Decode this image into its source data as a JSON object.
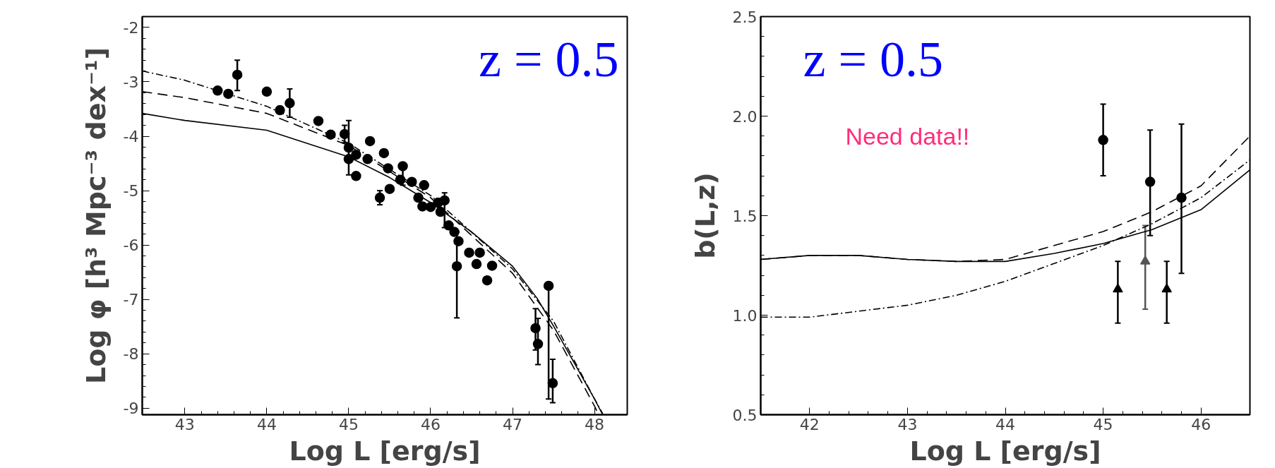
{
  "chart_data": [
    {
      "type": "scatter",
      "xlabel": "Log L [erg/s]",
      "ylabel": "Log φ [h³ Mpc⁻³ dex⁻¹]",
      "xlim": [
        42.48,
        48.4
      ],
      "ylim": [
        -9.12,
        -1.8
      ],
      "xticks": [
        43,
        44,
        45,
        46,
        47,
        48
      ],
      "yticks": [
        -9,
        -8,
        -7,
        -6,
        -5,
        -4,
        -3,
        -2
      ],
      "annotations": [
        "z = 0.5"
      ],
      "series": [
        {
          "color": "#000000",
          "marker": "circle",
          "x": [
            43.4,
            43.53,
            43.64,
            44.0,
            44.16,
            44.28,
            44.63,
            44.78,
            44.95,
            45.0,
            45.0,
            45.09,
            45.09,
            45.26,
            45.23,
            45.38,
            45.43,
            45.48,
            45.5,
            45.66,
            45.63,
            45.77,
            45.92,
            45.85,
            45.9,
            46.0,
            46.09,
            46.17,
            46.12,
            46.22,
            46.29,
            46.34,
            46.32,
            46.47,
            46.56,
            46.6,
            46.69,
            46.75,
            47.28,
            47.31,
            47.44,
            47.49
          ],
          "values": [
            -3.16,
            -3.22,
            -2.87,
            -3.18,
            -3.52,
            -3.39,
            -3.72,
            -3.97,
            -3.96,
            -4.21,
            -4.42,
            -4.34,
            -4.73,
            -4.09,
            -4.42,
            -5.13,
            -4.31,
            -4.59,
            -4.97,
            -4.55,
            -4.8,
            -4.84,
            -4.9,
            -5.13,
            -5.29,
            -5.3,
            -5.22,
            -5.18,
            -5.39,
            -5.64,
            -5.76,
            -5.93,
            -6.39,
            -6.14,
            -6.35,
            -6.14,
            -6.65,
            -6.38,
            -7.53,
            -7.82,
            -6.75,
            -8.54
          ],
          "errors": [
            null,
            null,
            [
              -3.16,
              -2.6
            ],
            null,
            null,
            [
              -3.65,
              -3.13
            ],
            null,
            null,
            [
              -4.12,
              -3.8
            ],
            [
              -4.71,
              -3.71
            ],
            null,
            null,
            null,
            null,
            null,
            [
              -5.26,
              -5.0
            ],
            null,
            null,
            null,
            [
              -4.9,
              -4.5
            ],
            null,
            null,
            null,
            null,
            null,
            null,
            null,
            [
              -5.68,
              -5.04
            ],
            null,
            null,
            null,
            null,
            [
              -7.34,
              -5.76
            ],
            null,
            null,
            null,
            null,
            null,
            [
              -7.93,
              -7.17
            ],
            [
              -8.2,
              -7.35
            ],
            [
              -8.83,
              -6.69
            ],
            [
              -8.9,
              -8.1
            ]
          ]
        },
        {
          "type": "line",
          "color": "#000000",
          "line_style": "solid",
          "x": [
            42.48,
            43,
            44,
            45,
            45.5,
            46,
            46.5,
            47,
            47.3,
            47.5,
            48,
            48.1
          ],
          "values": [
            -3.58,
            -3.71,
            -3.89,
            -4.38,
            -4.76,
            -5.22,
            -5.76,
            -6.39,
            -6.98,
            -7.49,
            -8.83,
            -9.12
          ]
        },
        {
          "type": "line",
          "color": "#000000",
          "line_style": "dashed",
          "x": [
            42.48,
            43,
            44,
            45,
            46,
            47,
            47.5,
            48,
            48.05
          ],
          "values": [
            -3.18,
            -3.29,
            -3.58,
            -4.17,
            -5.13,
            -6.52,
            -7.57,
            -8.96,
            -9.12
          ]
        },
        {
          "type": "line",
          "color": "#000000",
          "line_style": "dashdot",
          "x": [
            42.48,
            43,
            44,
            45,
            46,
            47,
            47.5,
            48,
            48.1
          ],
          "values": [
            -2.8,
            -2.97,
            -3.45,
            -4.13,
            -5.09,
            -6.44,
            -7.4,
            -8.83,
            -9.1
          ]
        }
      ]
    },
    {
      "type": "scatter",
      "xlabel": "Log L [erg/s]",
      "ylabel": "b(L,z)",
      "xlim": [
        41.5,
        46.5
      ],
      "ylim": [
        0.5,
        2.5
      ],
      "xticks": [
        42,
        43,
        44,
        45,
        46
      ],
      "yticks": [
        {
          "value": 0.5,
          "label": "0.5"
        },
        {
          "value": 1,
          "label": "1.0"
        },
        {
          "value": 1.5,
          "label": "1.5"
        },
        {
          "value": 2,
          "label": "2.0"
        },
        {
          "value": 2.5,
          "label": "2.5"
        }
      ],
      "annotations": [
        "z = 0.5",
        "Need data!!"
      ],
      "series": [
        {
          "color": "#000000",
          "marker": "circle",
          "x": [
            45.0,
            45.48,
            45.8
          ],
          "values": [
            1.88,
            1.67,
            1.59
          ],
          "errors": [
            [
              1.7,
              2.06
            ],
            [
              1.4,
              1.93
            ],
            [
              1.21,
              1.96
            ]
          ]
        },
        {
          "color": "#000000",
          "marker": "triangle",
          "x": [
            45.15,
            45.65
          ],
          "values": [
            1.13,
            1.13
          ],
          "errors": [
            [
              0.96,
              1.27
            ],
            [
              0.96,
              1.27
            ]
          ]
        },
        {
          "color": "#555555",
          "marker": "triangle",
          "x": [
            45.43
          ],
          "values": [
            1.27
          ],
          "errors": [
            [
              1.03,
              1.45
            ]
          ]
        },
        {
          "type": "line",
          "color": "#000000",
          "line_style": "solid",
          "x": [
            41.5,
            42,
            42.5,
            43,
            43.5,
            44,
            44.5,
            45,
            45.5,
            46,
            46.5
          ],
          "values": [
            1.28,
            1.3,
            1.3,
            1.28,
            1.27,
            1.27,
            1.31,
            1.36,
            1.43,
            1.53,
            1.73
          ]
        },
        {
          "type": "line",
          "color": "#000000",
          "line_style": "dashed",
          "x": [
            41.5,
            42,
            42.5,
            43,
            43.5,
            44,
            44.5,
            45,
            45.5,
            46,
            46.5
          ],
          "values": [
            1.28,
            1.3,
            1.3,
            1.28,
            1.27,
            1.28,
            1.35,
            1.42,
            1.52,
            1.65,
            1.9
          ]
        },
        {
          "type": "line",
          "color": "#000000",
          "line_style": "dashdot",
          "x": [
            41.5,
            42,
            42.5,
            43,
            43.5,
            44,
            44.5,
            45,
            45.5,
            46,
            46.5
          ],
          "values": [
            0.99,
            0.99,
            1.02,
            1.05,
            1.1,
            1.17,
            1.26,
            1.35,
            1.46,
            1.59,
            1.78
          ]
        }
      ]
    }
  ]
}
